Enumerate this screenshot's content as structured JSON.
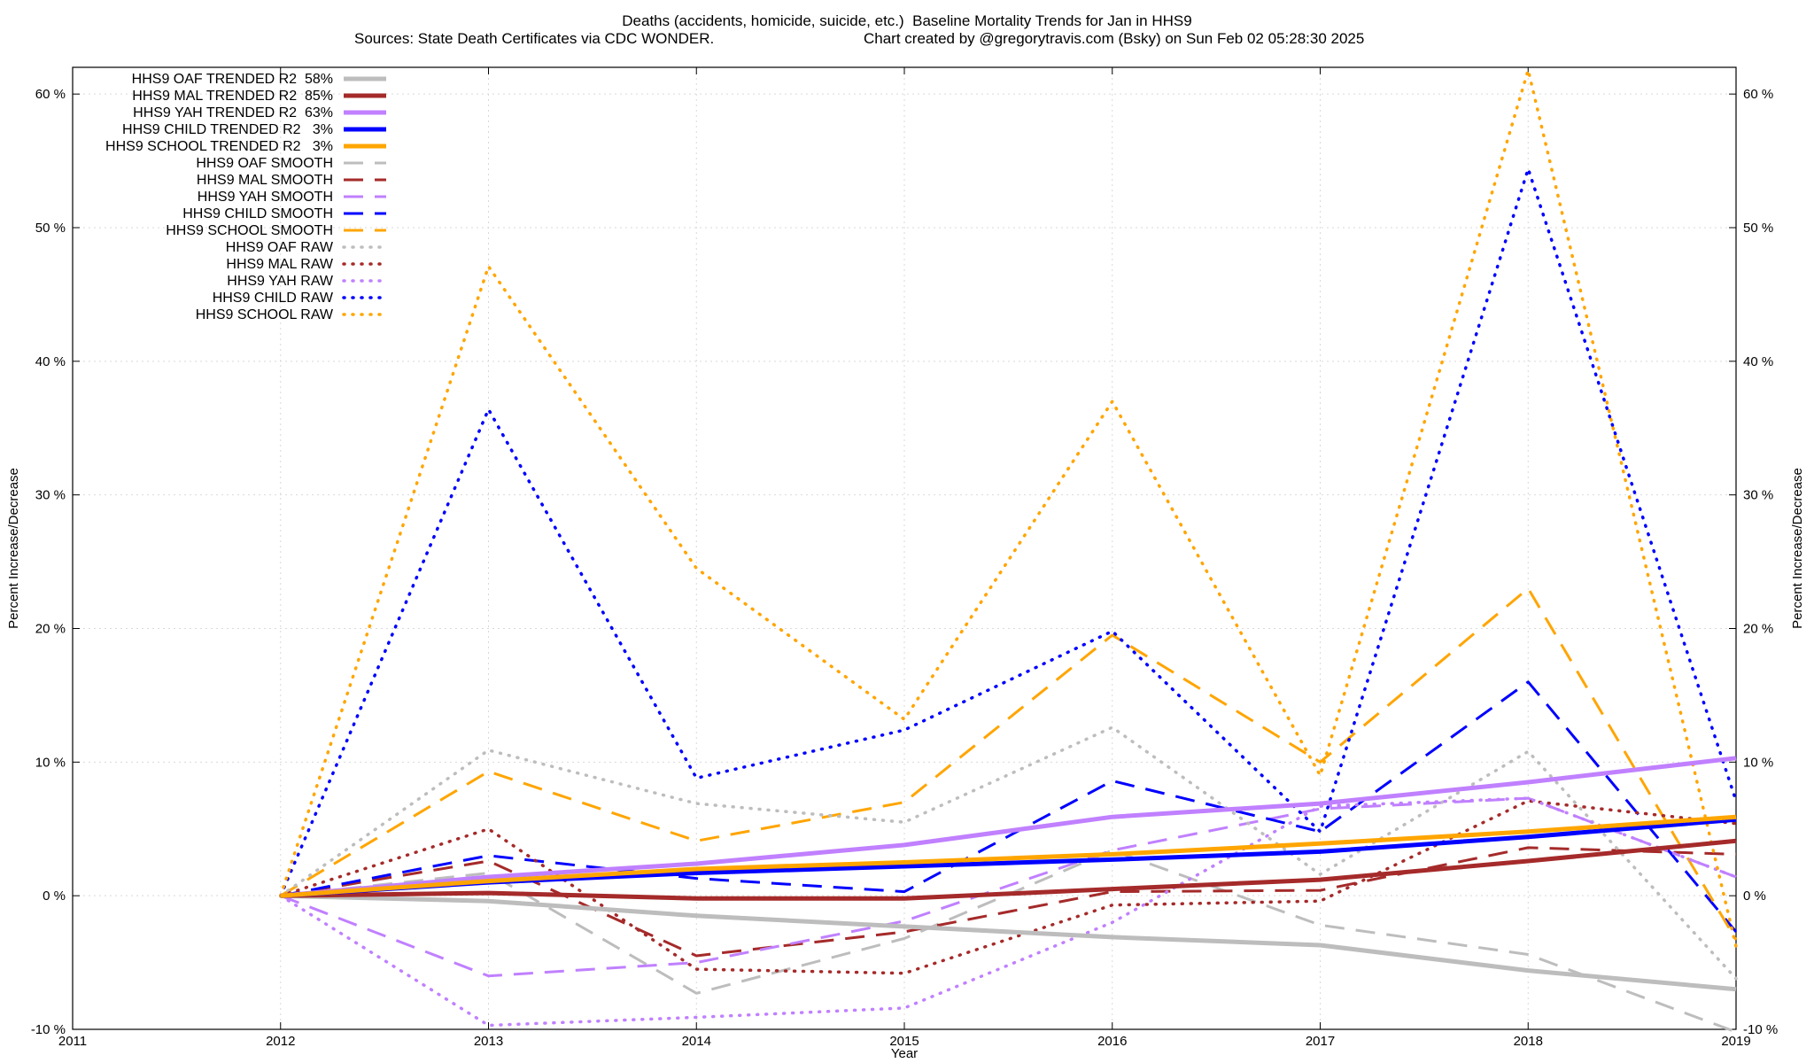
{
  "chart_data": {
    "type": "line",
    "title": "Deaths (accidents, homicide, suicide, etc.)  Baseline Mortality Trends for Jan in HHS9",
    "subtitle_left": "Sources: State Death Certificates via CDC WONDER.",
    "subtitle_right": "Chart created by @gregorytravis.com (Bsky) on Sun Feb 02 05:28:30 2025",
    "xlabel": "Year",
    "ylabel": "Percent Increase/Decrease",
    "y2label": "Percent Increase/Decrease",
    "xlim": [
      2011,
      2019
    ],
    "ylim": [
      -10,
      62
    ],
    "x_ticks": [
      2011,
      2012,
      2013,
      2014,
      2015,
      2016,
      2017,
      2018,
      2019
    ],
    "y_ticks": [
      -10,
      0,
      10,
      20,
      30,
      40,
      50,
      60
    ],
    "y_tick_labels": [
      "-10 %",
      "0 %",
      "10 %",
      "20 %",
      "30 %",
      "40 %",
      "50 %",
      "60 %"
    ],
    "grid": true,
    "legend_position": "top-left",
    "x": [
      2012,
      2013,
      2014,
      2015,
      2016,
      2017,
      2018,
      2019
    ],
    "series": [
      {
        "name": "HHS9 OAF TRENDED R2  58%",
        "style": "solid",
        "color": "#bdbdbd",
        "values": [
          0,
          -0.4,
          -1.5,
          -2.3,
          -3.1,
          -3.7,
          -5.6,
          -7.0
        ]
      },
      {
        "name": "HHS9 MAL TRENDED R2  85%",
        "style": "solid",
        "color": "#a52a2a",
        "values": [
          0,
          0.2,
          -0.2,
          -0.2,
          0.5,
          1.2,
          2.6,
          4.1
        ]
      },
      {
        "name": "HHS9 YAH TRENDED R2  63%",
        "style": "solid",
        "color": "#c080ff",
        "values": [
          0,
          1.4,
          2.4,
          3.8,
          5.9,
          6.9,
          8.5,
          10.3
        ]
      },
      {
        "name": "HHS9 CHILD TRENDED R2   3%",
        "style": "solid",
        "color": "#0000ff",
        "values": [
          0,
          1.0,
          1.7,
          2.2,
          2.7,
          3.3,
          4.4,
          5.7
        ]
      },
      {
        "name": "HHS9 SCHOOL TRENDED R2   3%",
        "style": "solid",
        "color": "#ffa500",
        "values": [
          0,
          1.1,
          2.0,
          2.5,
          3.1,
          3.9,
          4.8,
          5.9
        ]
      },
      {
        "name": "HHS9 OAF SMOOTH",
        "style": "dashed",
        "color": "#bdbdbd",
        "values": [
          0,
          1.7,
          -7.3,
          -3.2,
          3.4,
          -2.2,
          -4.4,
          -10.2
        ]
      },
      {
        "name": "HHS9 MAL SMOOTH",
        "style": "dashed",
        "color": "#a52a2a",
        "values": [
          0,
          2.6,
          -4.5,
          -2.7,
          0.3,
          0.4,
          3.6,
          3.1
        ]
      },
      {
        "name": "HHS9 YAH SMOOTH",
        "style": "dashed",
        "color": "#c080ff",
        "values": [
          0,
          -6.0,
          -5.0,
          -1.9,
          3.4,
          6.5,
          7.3,
          1.4
        ]
      },
      {
        "name": "HHS9 CHILD SMOOTH",
        "style": "dashed",
        "color": "#0000ff",
        "values": [
          0,
          3.0,
          1.3,
          0.3,
          8.6,
          4.8,
          16.0,
          -2.7
        ]
      },
      {
        "name": "HHS9 SCHOOL SMOOTH",
        "style": "dashed",
        "color": "#ffa500",
        "values": [
          0,
          9.3,
          4.1,
          7.0,
          19.5,
          10.0,
          23.0,
          -3.3
        ]
      },
      {
        "name": "HHS9 OAF RAW",
        "style": "dotted",
        "color": "#bdbdbd",
        "values": [
          0,
          10.9,
          6.9,
          5.5,
          12.6,
          1.6,
          10.8,
          -6.2
        ]
      },
      {
        "name": "HHS9 MAL RAW",
        "style": "dotted",
        "color": "#a52a2a",
        "values": [
          0,
          5.0,
          -5.5,
          -5.8,
          -0.7,
          -0.4,
          7.1,
          5.4
        ]
      },
      {
        "name": "HHS9 YAH RAW",
        "style": "dotted",
        "color": "#c080ff",
        "values": [
          0,
          -9.7,
          -9.1,
          -8.4,
          -2.0,
          6.7,
          7.3,
          1.4
        ]
      },
      {
        "name": "HHS9 CHILD RAW",
        "style": "dotted",
        "color": "#0000ff",
        "values": [
          0,
          36.4,
          8.8,
          12.4,
          19.8,
          4.8,
          54.4,
          7.1
        ]
      },
      {
        "name": "HHS9 SCHOOL RAW",
        "style": "dotted",
        "color": "#ffa500",
        "values": [
          0,
          47.1,
          24.5,
          13.2,
          37.0,
          9.0,
          61.8,
          -3.8
        ]
      }
    ]
  }
}
